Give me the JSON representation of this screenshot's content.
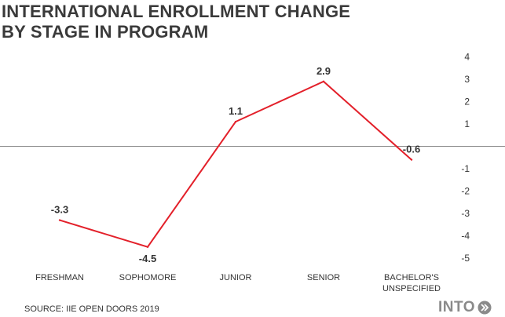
{
  "title_lines": [
    "INTERNATIONAL ENROLLMENT CHANGE",
    "BY STAGE IN PROGRAM"
  ],
  "source": "SOURCE: IIE OPEN DOORS 2019",
  "logo": "INTO",
  "colors": {
    "line": "#e3202a",
    "axis": "#8c8c8c",
    "text": "#333333",
    "title": "#3a3a3a"
  },
  "chart_data": {
    "type": "line",
    "title": "INTERNATIONAL ENROLLMENT CHANGE BY STAGE IN PROGRAM",
    "categories": [
      "FRESHMAN",
      "SOPHOMORE",
      "JUNIOR",
      "SENIOR",
      "BACHELOR'S UNSPECIFIED"
    ],
    "category_lines": [
      [
        "FRESHMAN"
      ],
      [
        "SOPHOMORE"
      ],
      [
        "JUNIOR"
      ],
      [
        "SENIOR"
      ],
      [
        "BACHELOR'S",
        "UNSPECIFIED"
      ]
    ],
    "values": [
      -3.3,
      -4.5,
      1.1,
      2.9,
      -0.6
    ],
    "data_labels": [
      "-3.3",
      "-4.5",
      "1.1",
      "2.9",
      "-0.6"
    ],
    "y_ticks": [
      4,
      3,
      2,
      1,
      -1,
      -2,
      -3,
      -4,
      -5
    ],
    "ylim": [
      -5,
      4
    ],
    "y_axis_position": "right",
    "grid": false,
    "zero_line": true
  }
}
